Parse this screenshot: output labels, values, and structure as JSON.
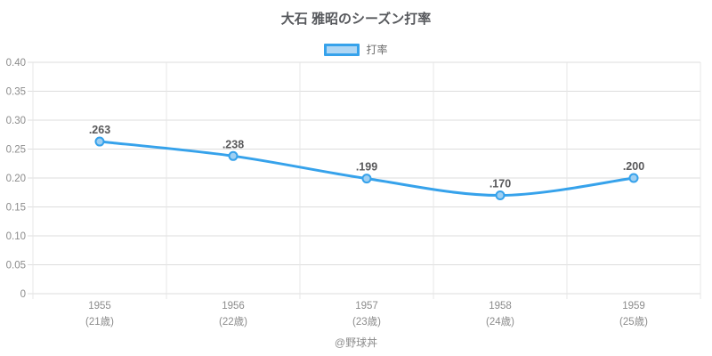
{
  "chart": {
    "title": "大石 雅昭のシーズン打率",
    "legend_label": "打率",
    "footer": "@野球丼"
  },
  "chart_data": {
    "type": "line",
    "title": "大石 雅昭のシーズン打率",
    "categories": [
      {
        "year": "1955",
        "age": "(21歳)"
      },
      {
        "year": "1956",
        "age": "(22歳)"
      },
      {
        "year": "1957",
        "age": "(23歳)"
      },
      {
        "year": "1958",
        "age": "(24歳)"
      },
      {
        "year": "1959",
        "age": "(25歳)"
      }
    ],
    "series": [
      {
        "name": "打率",
        "values": [
          0.263,
          0.238,
          0.199,
          0.17,
          0.2
        ]
      }
    ],
    "point_labels": [
      ".263",
      ".238",
      ".199",
      ".170",
      ".200"
    ],
    "y_ticks": [
      {
        "v": 0.4,
        "label": "0.40"
      },
      {
        "v": 0.35,
        "label": "0.35"
      },
      {
        "v": 0.3,
        "label": "0.30"
      },
      {
        "v": 0.25,
        "label": "0.25"
      },
      {
        "v": 0.2,
        "label": "0.20"
      },
      {
        "v": 0.15,
        "label": "0.15"
      },
      {
        "v": 0.1,
        "label": "0.10"
      },
      {
        "v": 0.05,
        "label": "0.05"
      },
      {
        "v": 0.0,
        "label": "0"
      }
    ],
    "ylim": [
      0,
      0.4
    ],
    "grid": true,
    "legend_position": "top",
    "colors": {
      "line": "#36a2eb",
      "marker_fill": "#9ecff2",
      "marker_stroke": "#36a2eb",
      "grid_h": "#dcdcdc",
      "grid_v": "#e7e7e7",
      "axis_text": "#8c8c8c",
      "point_label_text": "#58585a"
    }
  }
}
